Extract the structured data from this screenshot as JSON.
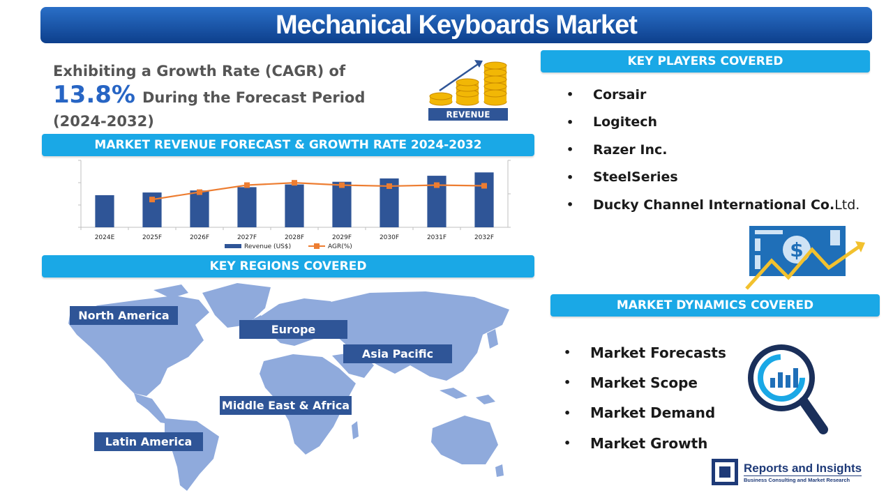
{
  "title": "Mechanical Keyboards Market",
  "cagr": {
    "line1": "Exhibiting a Growth Rate (CAGR) of",
    "rate": "13.8%",
    "line2": "During the Forecast Period",
    "period": "(2024-2032)"
  },
  "revenue_icon_label": "REVENUE",
  "sections": {
    "forecast": "MARKET REVENUE FORECAST & GROWTH RATE 2024-2032",
    "regions": "KEY REGIONS COVERED",
    "players": "KEY PLAYERS COVERED",
    "dynamics": "MARKET DYNAMICS COVERED"
  },
  "chart_data": {
    "type": "bar",
    "categories": [
      "2024E",
      "2025F",
      "2026F",
      "2027F",
      "2028F",
      "2029F",
      "2030F",
      "2031F",
      "2032F"
    ],
    "series": [
      {
        "name": "Revenue (US$)",
        "type": "bar",
        "color": "#2f5597",
        "values": [
          48,
          52,
          55,
          60,
          64,
          68,
          73,
          77,
          82
        ]
      },
      {
        "name": "AGR(%)",
        "type": "line",
        "color": "#ed7d31",
        "values": [
          null,
          8.3,
          10.5,
          12.6,
          13.3,
          12.6,
          12.3,
          12.6,
          12.4
        ]
      }
    ],
    "ylim": [
      0,
      100
    ],
    "y2lim": [
      0,
      20
    ]
  },
  "players": [
    "Corsair",
    "Logitech",
    "Razer Inc.",
    "SteelSeries"
  ],
  "player_last": {
    "bold": "Ducky Channel International Co.",
    "rest": " Ltd."
  },
  "bullet": "•",
  "regions": [
    "North America",
    "Europe",
    "Asia Pacific",
    "Middle East & Africa",
    "Latin America"
  ],
  "dynamics": [
    "Market Forecasts",
    "Market Scope",
    "Market Demand",
    "Market Growth"
  ],
  "logo": {
    "name": "Reports and Insights",
    "tagline": "Business Consulting and Market Research"
  },
  "colors": {
    "title": "#0d3f8c",
    "section": "#1aa8e6",
    "accent": "#2765c4",
    "map": "#8faadc",
    "label": "#2f5597"
  }
}
